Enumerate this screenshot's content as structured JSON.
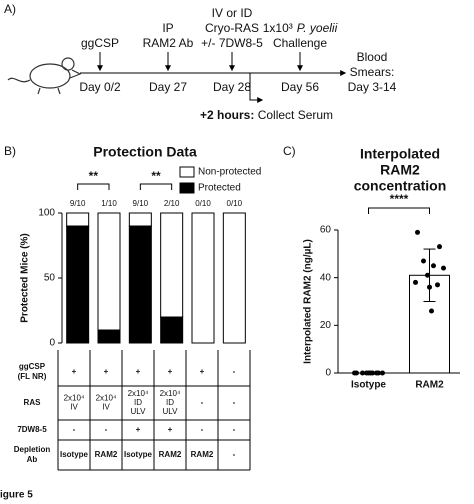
{
  "panels": {
    "a": "A)",
    "b": "B)",
    "c": "C)"
  },
  "timeline": {
    "events": [
      {
        "top": [
          "ggCSP"
        ],
        "day": "Day 0/2"
      },
      {
        "top": [
          "IP",
          "RAM2 Ab"
        ],
        "day": "Day 27"
      },
      {
        "top": [
          "IV or ID",
          "Cryo-RAS",
          "+/- 7DW8-5"
        ],
        "day": "Day 28"
      },
      {
        "top": [
          "1x10³",
          "Challenge"
        ],
        "species": "P. yoelii",
        "day": "Day 56"
      }
    ],
    "end": [
      "Blood",
      "Smears:",
      "Day 3-14"
    ],
    "branch": {
      "bold": "+2 hours:",
      "text": " Collect Serum"
    }
  },
  "chart_data": [
    {
      "type": "stacked_bar",
      "title": "Protection Data",
      "ylabel": "Protected Mice (%)",
      "ylim": [
        0,
        100
      ],
      "yticks": [
        0,
        50,
        100
      ],
      "series": [
        {
          "name": "Protected",
          "color": "#000000",
          "values": [
            90,
            10,
            90,
            20,
            0,
            0
          ]
        },
        {
          "name": "Non-protected",
          "color": "#ffffff",
          "values": [
            10,
            90,
            10,
            80,
            100,
            100
          ]
        }
      ],
      "fractions": [
        "9/10",
        "1/10",
        "9/10",
        "2/10",
        "0/10",
        "0/10"
      ],
      "significance": [
        "**",
        "**"
      ]
    },
    {
      "type": "bar_scatter",
      "title": [
        "Interpolated",
        "RAM2",
        "concentration"
      ],
      "ylabel": "Interpolated RAM2 (ng/µL)",
      "ylim": [
        0,
        60
      ],
      "yticks": [
        0,
        20,
        40,
        60
      ],
      "categories": [
        "Isotype",
        "RAM2"
      ],
      "values": [
        0,
        41
      ],
      "errors": [
        0,
        11
      ],
      "color": "#ffffff",
      "points": [
        [
          0,
          0,
          0,
          0,
          0,
          0,
          0,
          0,
          0,
          0
        ],
        [
          59,
          53,
          47,
          45,
          44,
          41,
          38,
          37,
          36,
          26
        ]
      ],
      "significance": "****"
    }
  ],
  "table": {
    "rows": [
      {
        "label": [
          "ggCSP",
          "(FL NR)"
        ],
        "cells": [
          [
            "+"
          ],
          [
            "+"
          ],
          [
            "+"
          ],
          [
            "+"
          ],
          [
            "+"
          ],
          [
            "-"
          ]
        ]
      },
      {
        "label": [
          "RAS"
        ],
        "cells": [
          [
            "2x10⁴",
            "IV"
          ],
          [
            "2x10⁴",
            "IV"
          ],
          [
            "2x10⁴",
            "ID",
            "ULV"
          ],
          [
            "2x10⁴",
            "ID",
            "ULV"
          ],
          [
            "-"
          ],
          [
            "-"
          ]
        ]
      },
      {
        "label": [
          "7DW8-5"
        ],
        "cells": [
          [
            "-"
          ],
          [
            "-"
          ],
          [
            "+"
          ],
          [
            "+"
          ],
          [
            "-"
          ],
          [
            "-"
          ]
        ]
      },
      {
        "label": [
          "Depletion",
          "Ab"
        ],
        "cells": [
          [
            "Isotype"
          ],
          [
            "RAM2"
          ],
          [
            "Isotype"
          ],
          [
            "RAM2"
          ],
          [
            "RAM2"
          ],
          [
            "-"
          ]
        ]
      }
    ]
  },
  "caption": "igure 5"
}
